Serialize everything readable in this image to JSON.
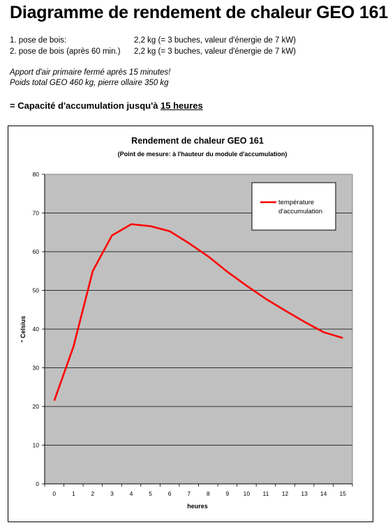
{
  "header": {
    "title": "Diagramme de rendement de chaleur GEO 161"
  },
  "specs": [
    {
      "label": "1. pose de bois:",
      "value": "2,2 kg (= 3 buches, valeur d'énergie de 7 kW)"
    },
    {
      "label": "2. pose de bois (après 60 min.)",
      "value": "2,2 kg (= 3 buches, valeur d'énergie de 7 kW)"
    }
  ],
  "notes": [
    "Apport d'air primaire fermé après 15 minutes!",
    "Poids total GEO 460 kg, pierre ollaire 350 kg"
  ],
  "capacity": {
    "prefix": "= Capacité d'accumulation jusqu'à ",
    "highlight": "15 heures"
  },
  "chart_data": {
    "type": "line",
    "title": "Rendement de chaleur GEO 161",
    "subtitle": "(Point de mesure: à l'hauteur du module d'accumulation)",
    "xlabel": "heures",
    "ylabel": "° Celsius",
    "x": [
      0,
      1,
      2,
      3,
      4,
      5,
      6,
      7,
      8,
      9,
      10,
      11,
      12,
      13,
      14,
      15
    ],
    "x_ticks": [
      "0",
      "1",
      "2",
      "3",
      "4",
      "5",
      "6",
      "7",
      "8",
      "9",
      "10",
      "11",
      "12",
      "13",
      "14",
      "15"
    ],
    "y_ticks": [
      "0",
      "10",
      "20",
      "30",
      "40",
      "50",
      "60",
      "70",
      "80"
    ],
    "ylim": [
      0,
      80
    ],
    "grid": true,
    "legend_position": "top-right",
    "series": [
      {
        "name": "température d'accumulation",
        "legend_lines": [
          "température",
          "d'accumulation"
        ],
        "color": "#ff0000",
        "values": [
          21.5,
          35.5,
          55,
          64.2,
          67.1,
          66.6,
          65.3,
          62.2,
          58.8,
          54.8,
          51.2,
          47.8,
          44.8,
          41.9,
          39.2,
          37.7
        ]
      }
    ],
    "plot_background": "#c0c0c0",
    "gridline_color": "#000000"
  }
}
